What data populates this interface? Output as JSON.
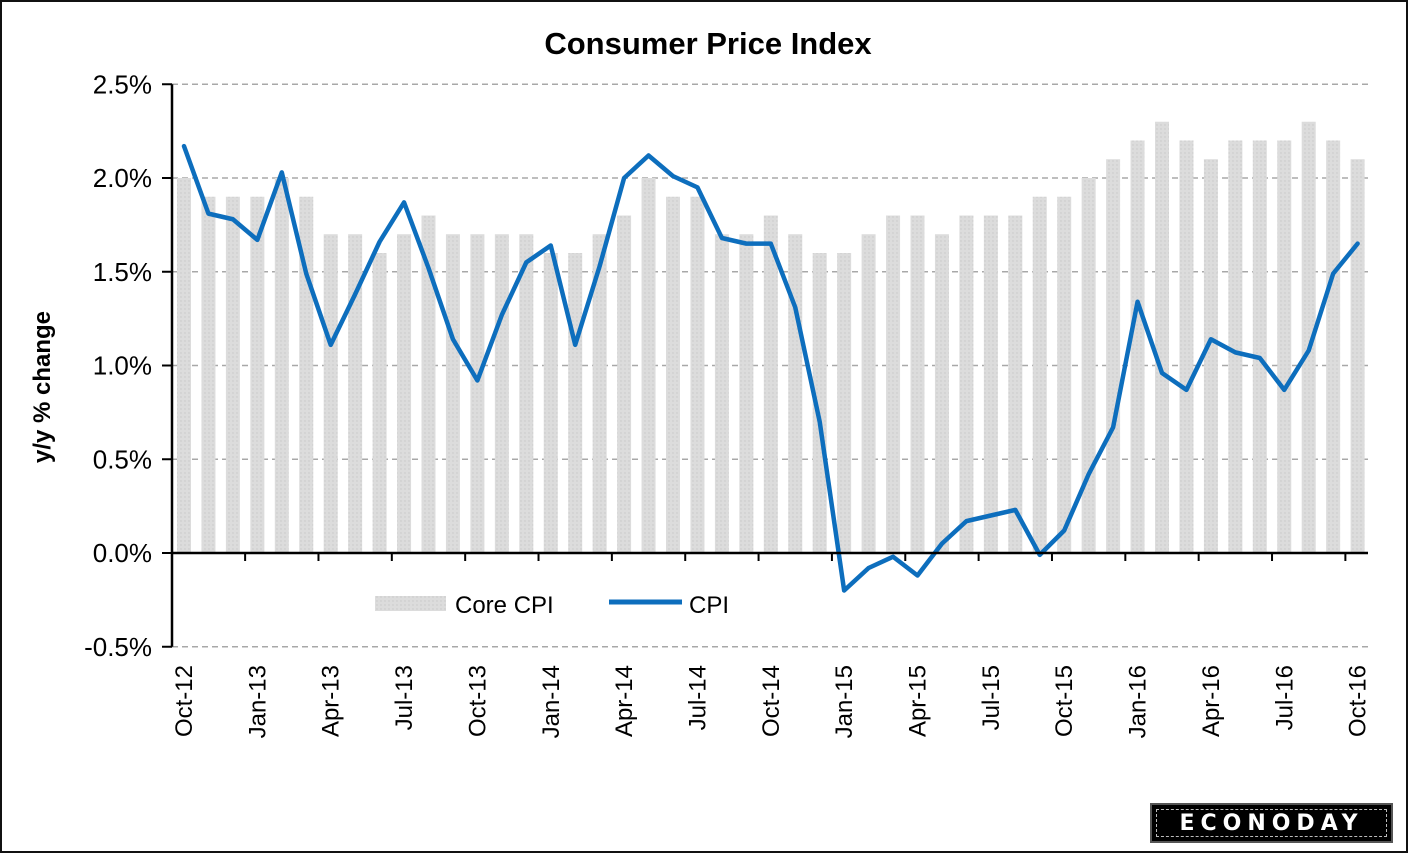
{
  "chart_data": {
    "type": "bar",
    "title": "Consumer Price Index",
    "xlabel": "",
    "ylabel": "y/y % change",
    "ylim": [
      -0.5,
      2.5
    ],
    "yticks": [
      2.5,
      2.0,
      1.5,
      1.0,
      0.5,
      0.0,
      -0.5
    ],
    "ytick_labels": [
      "2.5%",
      "2.0%",
      "1.5%",
      "1.0%",
      "0.5%",
      "0.0%",
      "-0.5%"
    ],
    "grid": true,
    "legend_position": "bottom-left (inside plot, below zero line)",
    "categories": [
      "Oct-12",
      "Nov-12",
      "Dec-12",
      "Jan-13",
      "Feb-13",
      "Mar-13",
      "Apr-13",
      "May-13",
      "Jun-13",
      "Jul-13",
      "Aug-13",
      "Sep-13",
      "Oct-13",
      "Nov-13",
      "Dec-13",
      "Jan-14",
      "Feb-14",
      "Mar-14",
      "Apr-14",
      "May-14",
      "Jun-14",
      "Jul-14",
      "Aug-14",
      "Sep-14",
      "Oct-14",
      "Nov-14",
      "Dec-14",
      "Jan-15",
      "Feb-15",
      "Mar-15",
      "Apr-15",
      "May-15",
      "Jun-15",
      "Jul-15",
      "Aug-15",
      "Sep-15",
      "Oct-15",
      "Nov-15",
      "Dec-15",
      "Jan-16",
      "Feb-16",
      "Mar-16",
      "Apr-16",
      "May-16",
      "Jun-16",
      "Jul-16",
      "Aug-16",
      "Sep-16",
      "Oct-16"
    ],
    "xtick_labels": [
      "Oct-12",
      "Jan-13",
      "Apr-13",
      "Jul-13",
      "Oct-13",
      "Jan-14",
      "Apr-14",
      "Jul-14",
      "Oct-14",
      "Jan-15",
      "Apr-15",
      "Jul-15",
      "Oct-15",
      "Jan-16",
      "Apr-16",
      "Jul-16",
      "Oct-16"
    ],
    "series": [
      {
        "name": "Core CPI",
        "type": "bar",
        "color": "#d9d9d9",
        "values": [
          2.0,
          1.9,
          1.9,
          1.9,
          2.0,
          1.9,
          1.7,
          1.7,
          1.6,
          1.7,
          1.8,
          1.7,
          1.7,
          1.7,
          1.7,
          1.6,
          1.6,
          1.7,
          1.8,
          2.0,
          1.9,
          1.9,
          1.7,
          1.7,
          1.8,
          1.7,
          1.6,
          1.6,
          1.7,
          1.8,
          1.8,
          1.7,
          1.8,
          1.8,
          1.8,
          1.9,
          1.9,
          2.0,
          2.1,
          2.2,
          2.3,
          2.2,
          2.1,
          2.2,
          2.2,
          2.2,
          2.3,
          2.2,
          2.1
        ]
      },
      {
        "name": "CPI",
        "type": "line",
        "color": "#0d6ebd",
        "values": [
          2.17,
          1.81,
          1.78,
          1.67,
          2.03,
          1.49,
          1.11,
          1.38,
          1.66,
          1.87,
          1.52,
          1.14,
          0.92,
          1.27,
          1.55,
          1.64,
          1.11,
          1.53,
          2.0,
          2.12,
          2.01,
          1.95,
          1.68,
          1.65,
          1.65,
          1.31,
          0.7,
          -0.2,
          -0.08,
          -0.02,
          -0.12,
          0.05,
          0.17,
          0.2,
          0.23,
          -0.01,
          0.12,
          0.42,
          0.67,
          1.34,
          0.96,
          0.87,
          1.14,
          1.07,
          1.04,
          0.87,
          1.08,
          1.49,
          1.65
        ]
      }
    ]
  },
  "branding": {
    "logo_text": "ECONODAY"
  }
}
